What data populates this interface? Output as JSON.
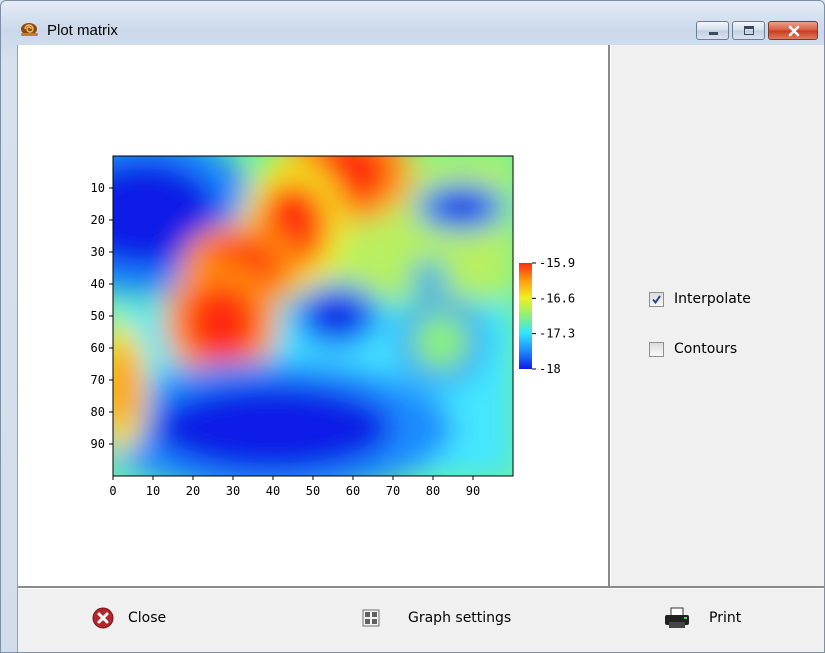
{
  "window": {
    "title": "Plot matrix",
    "icon": "snail-icon"
  },
  "title_controls": [
    "minimize-icon",
    "maximize-icon",
    "close-icon"
  ],
  "options": {
    "interpolate": {
      "label": "Interpolate",
      "checked": true
    },
    "contours": {
      "label": "Contours",
      "checked": false
    }
  },
  "toolbar": {
    "close_label": "Close",
    "graph_settings_label": "Graph settings",
    "print_label": "Print"
  },
  "chart_data": {
    "type": "heatmap",
    "x_ticks": [
      "0",
      "10",
      "20",
      "30",
      "40",
      "50",
      "60",
      "70",
      "80",
      "90"
    ],
    "y_ticks": [
      "10",
      "20",
      "30",
      "40",
      "50",
      "60",
      "70",
      "80",
      "90"
    ],
    "xlim": [
      0,
      100
    ],
    "ylim": [
      0,
      100
    ],
    "colorbar": {
      "ticks": [
        "-15.9",
        "-16.6",
        "-17.3",
        "-18"
      ],
      "min": -18,
      "max": -15.9
    },
    "colormap": [
      "#0a1ee6",
      "#1f8bff",
      "#2fe6ff",
      "#8cf07a",
      "#f0f020",
      "#ff9a10",
      "#ff2a10"
    ],
    "interpolated": true,
    "features": [
      {
        "x": 8,
        "y": 18,
        "value": -18.0
      },
      {
        "x": 58,
        "y": 5,
        "value": -15.9
      },
      {
        "x": 45,
        "y": 22,
        "value": -16.0
      },
      {
        "x": 32,
        "y": 35,
        "value": -15.9
      },
      {
        "x": 27,
        "y": 52,
        "value": -15.9
      },
      {
        "x": 87,
        "y": 16,
        "value": -18.0
      },
      {
        "x": 56,
        "y": 50,
        "value": -18.0
      },
      {
        "x": 79,
        "y": 38,
        "value": -17.6
      },
      {
        "x": 40,
        "y": 85,
        "value": -18.0
      },
      {
        "x": 2,
        "y": 72,
        "value": -16.1
      },
      {
        "x": 82,
        "y": 58,
        "value": -17.0
      }
    ]
  }
}
